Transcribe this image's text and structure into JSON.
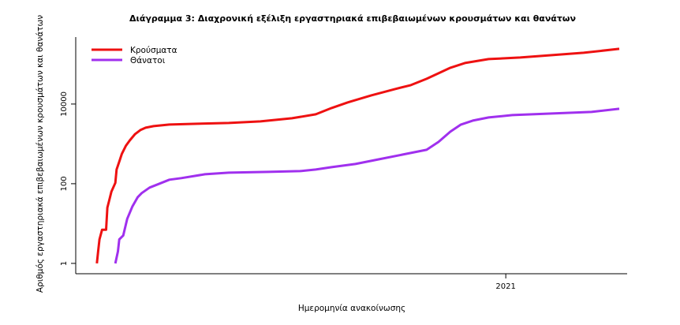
{
  "chart_data": {
    "type": "line",
    "title": "Διάγραμμα 3: Διαχρονική εξέλιξη εργαστηριακά επιβεβαιωμένων κρουσμάτων και θανάτων",
    "xlabel": "Ημερομηνία ανακοίνωσης",
    "ylabel": "Αριθμός εργαστηριακά επιβεβαιωμένων κρουσμάτων και θανάτων",
    "x_units": "days since first case (2020-02-26)",
    "xlim": [
      -16,
      402
    ],
    "y_scale": "log",
    "ylim": [
      0.55,
      480000
    ],
    "y_ticks": [
      {
        "value": 1,
        "label": "1"
      },
      {
        "value": 100,
        "label": "100"
      },
      {
        "value": 10000,
        "label": "10000"
      }
    ],
    "x_ticks": [
      {
        "value": 310,
        "label": "2021"
      }
    ],
    "grid": false,
    "legend_position": "top-left",
    "series": [
      {
        "name": "Κρούσματα",
        "color": "#ee1111",
        "x": [
          0,
          1,
          2,
          4,
          7,
          8,
          10,
          11,
          14,
          15,
          17,
          19,
          22,
          25,
          29,
          33,
          37,
          43,
          55,
          76,
          100,
          124,
          148,
          166,
          178,
          190,
          208,
          226,
          238,
          250,
          259,
          268,
          279,
          297,
          321,
          345,
          369,
          396
        ],
        "values": [
          1,
          2,
          4,
          7,
          7,
          25,
          46,
          63,
          105,
          227,
          358,
          565,
          892,
          1228,
          1770,
          2222,
          2547,
          2790,
          3055,
          3200,
          3350,
          3665,
          4400,
          5530,
          7960,
          10960,
          16500,
          23800,
          29900,
          43000,
          59200,
          81500,
          107000,
          134500,
          147300,
          169000,
          193600,
          243000
        ]
      },
      {
        "name": "Θάνατοι",
        "color": "#a030ee",
        "x": [
          14,
          16,
          17,
          20,
          23,
          27,
          31,
          34,
          40,
          46,
          55,
          64,
          82,
          100,
          130,
          154,
          166,
          178,
          196,
          214,
          232,
          250,
          259,
          268,
          276,
          285,
          297,
          315,
          345,
          375,
          396
        ],
        "values": [
          1,
          2,
          4,
          5,
          13,
          27,
          46,
          58,
          80,
          96,
          126,
          138,
          173,
          189,
          198,
          207,
          227,
          261,
          313,
          411,
          541,
          710,
          1120,
          2030,
          3055,
          3840,
          4610,
          5280,
          5780,
          6340,
          7600
        ]
      }
    ]
  }
}
